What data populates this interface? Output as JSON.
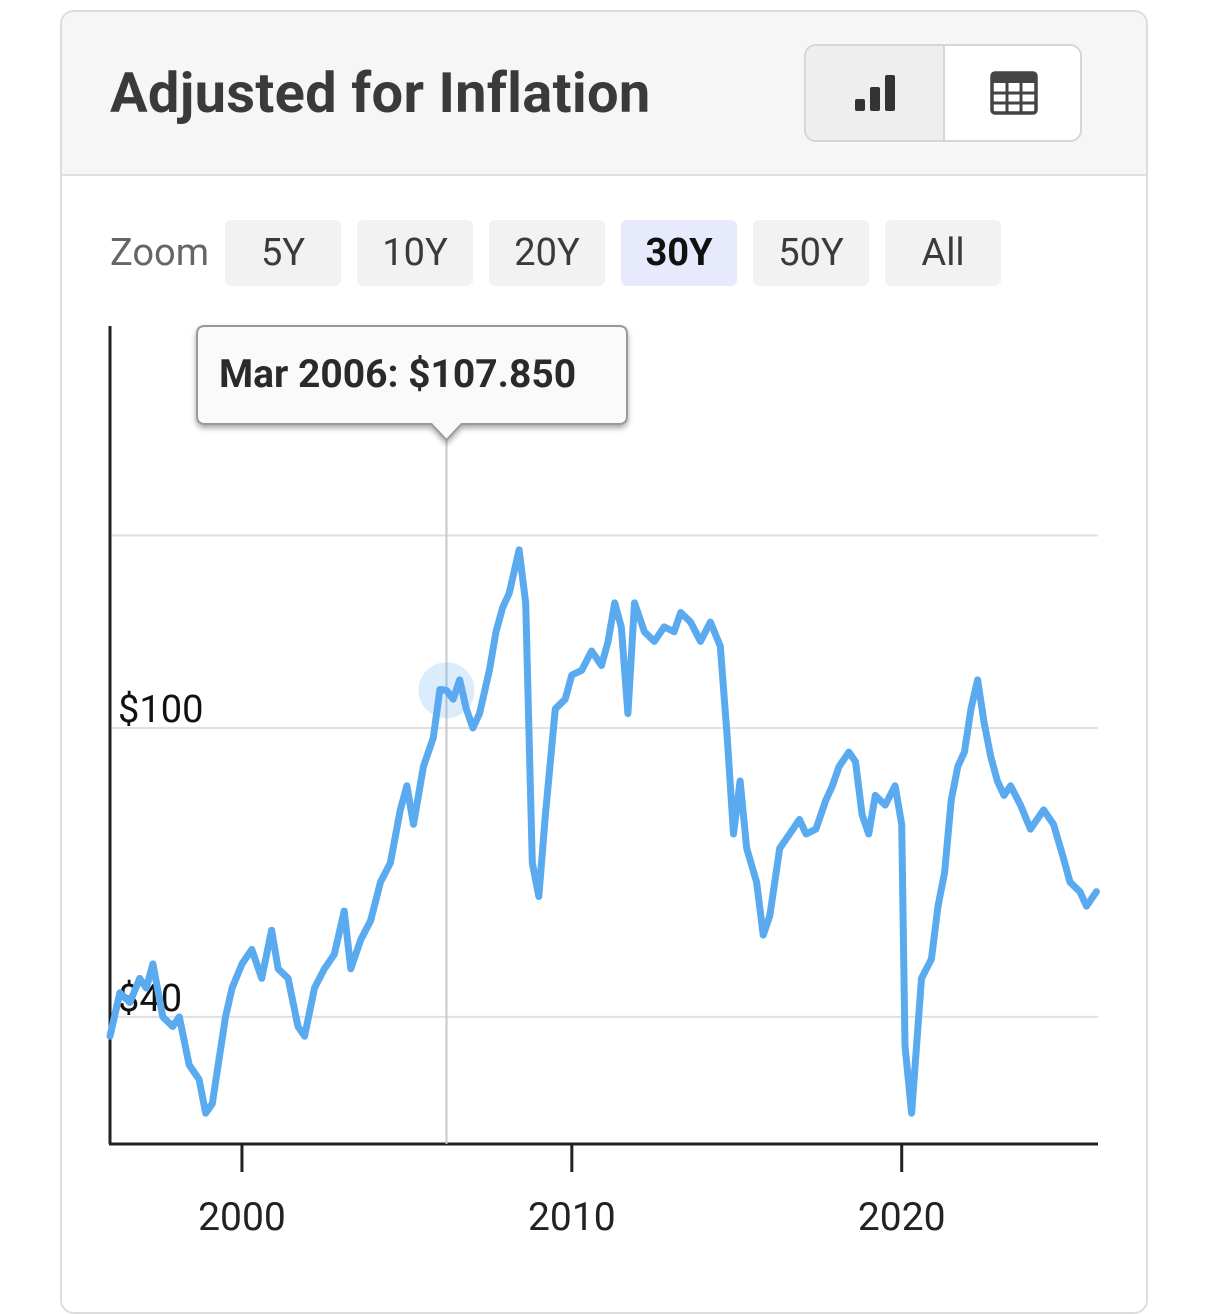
{
  "header": {
    "title": "Adjusted for Inflation",
    "view_buttons": [
      {
        "label": "",
        "icon": "bar-chart-icon",
        "active": true
      },
      {
        "label": "",
        "icon": "table-icon",
        "active": false
      }
    ]
  },
  "zoom": {
    "label": "Zoom",
    "options": [
      "5Y",
      "10Y",
      "20Y",
      "30Y",
      "50Y",
      "All"
    ],
    "active": "30Y"
  },
  "tooltip": {
    "text": "Mar 2006: $107.850"
  },
  "colors": {
    "line": "#5aaaf0",
    "active_zoom_bg": "#e6eafc",
    "gridline": "#e0e0e0"
  },
  "chart_data": {
    "type": "line",
    "title": "",
    "xlabel": "",
    "ylabel": "",
    "x_ticks": [
      2000,
      2010,
      2020
    ],
    "y_ticks": [
      {
        "value": 40,
        "label": "$40"
      },
      {
        "value": 100,
        "label": "$100"
      }
    ],
    "grid": true,
    "highlight": {
      "x": 2006.2,
      "y": 107.85
    },
    "series": [
      {
        "values": [
          [
            1996.0,
            36
          ],
          [
            1996.3,
            45
          ],
          [
            1996.6,
            43
          ],
          [
            1996.9,
            48
          ],
          [
            1997.1,
            46
          ],
          [
            1997.3,
            51
          ],
          [
            1997.6,
            40
          ],
          [
            1997.9,
            38
          ],
          [
            1998.1,
            40
          ],
          [
            1998.4,
            30
          ],
          [
            1998.7,
            27
          ],
          [
            1998.9,
            20
          ],
          [
            1999.1,
            22
          ],
          [
            1999.3,
            31
          ],
          [
            1999.5,
            40
          ],
          [
            1999.7,
            46
          ],
          [
            2000.0,
            51
          ],
          [
            2000.3,
            54
          ],
          [
            2000.6,
            48
          ],
          [
            2000.9,
            58
          ],
          [
            2001.1,
            50
          ],
          [
            2001.4,
            48
          ],
          [
            2001.7,
            38
          ],
          [
            2001.9,
            36
          ],
          [
            2002.2,
            46
          ],
          [
            2002.5,
            50
          ],
          [
            2002.8,
            53
          ],
          [
            2003.1,
            62
          ],
          [
            2003.3,
            50
          ],
          [
            2003.6,
            56
          ],
          [
            2003.9,
            60
          ],
          [
            2004.2,
            68
          ],
          [
            2004.5,
            72
          ],
          [
            2004.8,
            83
          ],
          [
            2005.0,
            88
          ],
          [
            2005.2,
            80
          ],
          [
            2005.5,
            92
          ],
          [
            2005.8,
            98
          ],
          [
            2006.0,
            108
          ],
          [
            2006.2,
            107.85
          ],
          [
            2006.4,
            106
          ],
          [
            2006.6,
            110
          ],
          [
            2006.8,
            104
          ],
          [
            2007.0,
            100
          ],
          [
            2007.2,
            103
          ],
          [
            2007.5,
            112
          ],
          [
            2007.7,
            120
          ],
          [
            2007.9,
            125
          ],
          [
            2008.1,
            128
          ],
          [
            2008.4,
            137
          ],
          [
            2008.6,
            126
          ],
          [
            2008.8,
            72
          ],
          [
            2009.0,
            65
          ],
          [
            2009.2,
            82
          ],
          [
            2009.5,
            104
          ],
          [
            2009.8,
            106
          ],
          [
            2010.0,
            111
          ],
          [
            2010.3,
            112
          ],
          [
            2010.6,
            116
          ],
          [
            2010.9,
            113
          ],
          [
            2011.1,
            118
          ],
          [
            2011.3,
            126
          ],
          [
            2011.5,
            121
          ],
          [
            2011.7,
            103
          ],
          [
            2011.9,
            126
          ],
          [
            2012.2,
            120
          ],
          [
            2012.5,
            118
          ],
          [
            2012.8,
            121
          ],
          [
            2013.1,
            120
          ],
          [
            2013.3,
            124
          ],
          [
            2013.6,
            122
          ],
          [
            2013.9,
            118
          ],
          [
            2014.2,
            122
          ],
          [
            2014.5,
            117
          ],
          [
            2014.7,
            99
          ],
          [
            2014.9,
            78
          ],
          [
            2015.1,
            89
          ],
          [
            2015.3,
            75
          ],
          [
            2015.6,
            68
          ],
          [
            2015.8,
            57
          ],
          [
            2016.0,
            61
          ],
          [
            2016.3,
            75
          ],
          [
            2016.6,
            78
          ],
          [
            2016.9,
            81
          ],
          [
            2017.1,
            78
          ],
          [
            2017.4,
            79
          ],
          [
            2017.7,
            85
          ],
          [
            2017.9,
            88
          ],
          [
            2018.1,
            92
          ],
          [
            2018.4,
            95
          ],
          [
            2018.6,
            93
          ],
          [
            2018.8,
            82
          ],
          [
            2019.0,
            78
          ],
          [
            2019.2,
            86
          ],
          [
            2019.5,
            84
          ],
          [
            2019.8,
            88
          ],
          [
            2020.0,
            80
          ],
          [
            2020.1,
            34
          ],
          [
            2020.3,
            20
          ],
          [
            2020.6,
            48
          ],
          [
            2020.9,
            52
          ],
          [
            2021.1,
            63
          ],
          [
            2021.3,
            70
          ],
          [
            2021.5,
            85
          ],
          [
            2021.7,
            92
          ],
          [
            2021.9,
            95
          ],
          [
            2022.1,
            104
          ],
          [
            2022.3,
            110
          ],
          [
            2022.5,
            101
          ],
          [
            2022.7,
            94
          ],
          [
            2022.9,
            89
          ],
          [
            2023.1,
            86
          ],
          [
            2023.3,
            88
          ],
          [
            2023.6,
            84
          ],
          [
            2023.9,
            79
          ],
          [
            2024.1,
            81
          ],
          [
            2024.3,
            83
          ],
          [
            2024.6,
            80
          ],
          [
            2024.9,
            73
          ],
          [
            2025.1,
            68
          ],
          [
            2025.4,
            66
          ],
          [
            2025.6,
            63
          ],
          [
            2025.9,
            66
          ]
        ]
      }
    ],
    "xlim": [
      1996.0,
      2025.95
    ],
    "ylim": [
      13.6,
      153.6
    ]
  }
}
